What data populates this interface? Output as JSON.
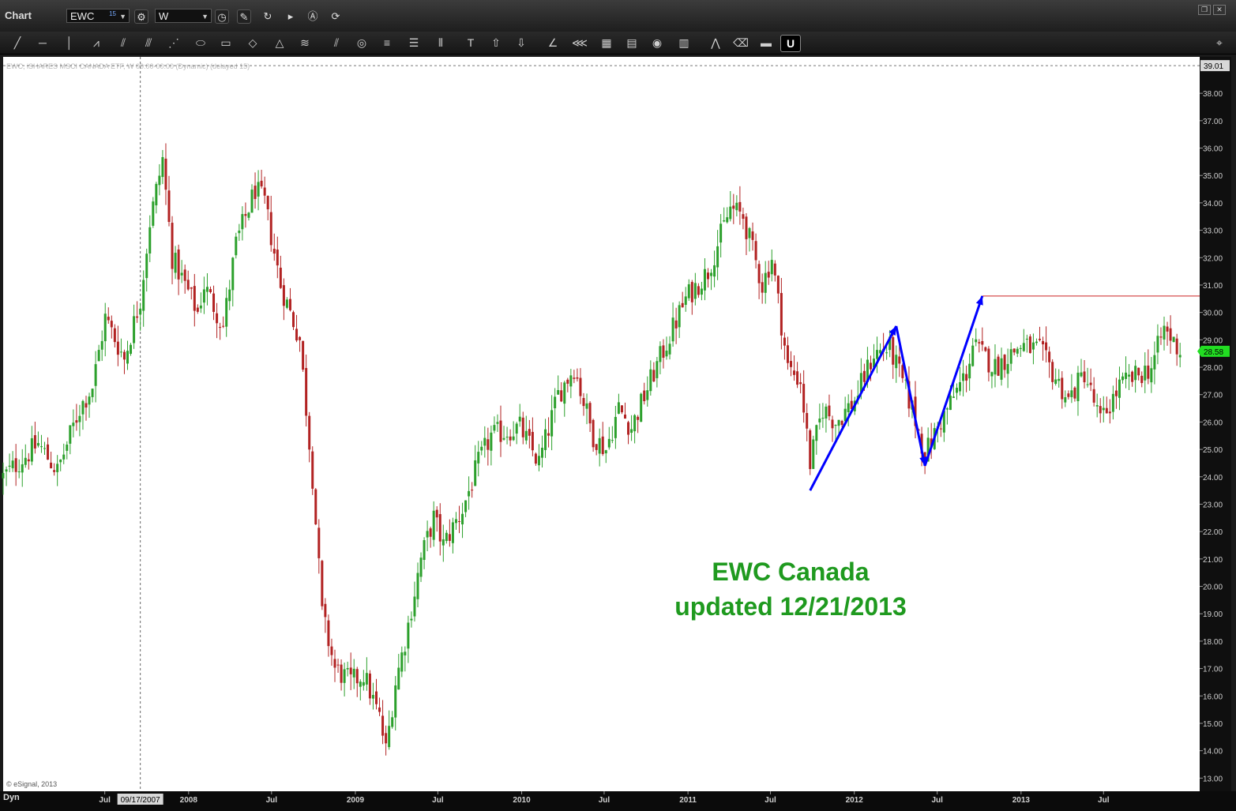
{
  "window": {
    "title": "Chart",
    "symbol": "EWC",
    "symbol_count": "15",
    "interval": "W"
  },
  "header_line": "EWC, iSHARES MSCI CANADA ETF, W 00:00-00:00 (Dynamic) (delayed 15)",
  "copyright": "© eSignal, 2013",
  "footer": {
    "mode": "Dyn"
  },
  "colors": {
    "up": "#2ca02c",
    "down": "#b22222",
    "annotation": "#1f9a1f",
    "arrow": "#0000ff",
    "resistance": "#cc2222",
    "last_price_bg": "#22dd22",
    "cursor_price_bg": "#d8d8d8"
  },
  "icons": [
    "settings-icon",
    "clock-icon",
    "pencil-icon",
    "refresh-icon",
    "play-icon",
    "alert-icon",
    "link-icon",
    "line-tool-icon",
    "horizontal-line-icon",
    "vertical-line-icon",
    "wave-icon",
    "fork-icon",
    "fan-icon",
    "gann-icon",
    "ellipse-icon",
    "rectangle-icon",
    "diamond-icon",
    "triangle-icon",
    "channel-icon",
    "parallel-icon",
    "circles-icon",
    "fib-icon",
    "fib-ext-icon",
    "cycle-icon",
    "text-icon",
    "up-arrow-icon",
    "down-arrow-icon",
    "angle-icon",
    "speed-icon",
    "grid-icon",
    "mob-icon",
    "t3-icon",
    "pti-icon",
    "pattern-icon",
    "eraser-icon",
    "comment-icon",
    "magnet-icon",
    "pin-icon"
  ],
  "chart_data": {
    "type": "candlestick",
    "title": "",
    "annotation": [
      "EWC Canada",
      "updated 12/21/2013"
    ],
    "interval": "weekly",
    "x_tick_labels": [
      "Jul",
      "09/17/2007",
      "2008",
      "Jul",
      "2009",
      "Jul",
      "2010",
      "Jul",
      "2011",
      "Jul",
      "2012",
      "Jul",
      "2013",
      "Jul"
    ],
    "x_tick_dates": [
      "2007-07-01",
      "2007-09-17",
      "2008-01-01",
      "2008-07-01",
      "2009-01-01",
      "2009-07-01",
      "2010-01-01",
      "2010-07-01",
      "2011-01-01",
      "2011-07-01",
      "2012-01-01",
      "2012-07-01",
      "2013-01-01",
      "2013-07-01"
    ],
    "x_range": [
      "2006-11-20",
      "2014-01-28"
    ],
    "y_range": [
      12.52,
      39.33
    ],
    "y_ticks": [
      13,
      14,
      15,
      16,
      17,
      18,
      19,
      20,
      21,
      22,
      23,
      24,
      25,
      26,
      27,
      28,
      29,
      30,
      31,
      32,
      33,
      34,
      35,
      36,
      37,
      38
    ],
    "y_tick_labels": [
      "13.00",
      "14.00",
      "15.00",
      "16.00",
      "17.00",
      "18.00",
      "19.00",
      "20.00",
      "21.00",
      "22.00",
      "23.00",
      "24.00",
      "25.00",
      "26.00",
      "27.00",
      "28.00",
      "29.00",
      "30.00",
      "31.00",
      "32.00",
      "33.00",
      "34.00",
      "35.00",
      "36.00",
      "37.00",
      "38.00"
    ],
    "last_price": 28.58,
    "last_price_label": "28.58",
    "cursor_price": 39.01,
    "cursor_price_label": "39.01",
    "cursor_date": "2007-09-17",
    "resistance_level": {
      "value": 30.6,
      "from": "2012-10-08"
    },
    "arrows": [
      {
        "from": [
          "2011-09-26",
          23.5
        ],
        "to": [
          "2012-04-02",
          29.5
        ]
      },
      {
        "from": [
          "2012-04-02",
          29.5
        ],
        "to": [
          "2012-06-04",
          24.4
        ]
      },
      {
        "from": [
          "2012-06-04",
          24.4
        ],
        "to": [
          "2012-10-08",
          30.6
        ]
      }
    ],
    "price_path": [
      [
        "2006-11-20",
        24.0
      ],
      [
        "2007-02-05",
        25.2
      ],
      [
        "2007-03-19",
        24.2
      ],
      [
        "2007-05-07",
        26.5
      ],
      [
        "2007-06-04",
        27.3
      ],
      [
        "2007-07-02",
        29.8
      ],
      [
        "2007-08-13",
        28.3
      ],
      [
        "2007-09-17",
        30.5
      ],
      [
        "2007-10-08",
        33.3
      ],
      [
        "2007-11-05",
        35.6
      ],
      [
        "2007-11-26",
        32.0
      ],
      [
        "2008-01-21",
        30.0
      ],
      [
        "2008-02-04",
        31.0
      ],
      [
        "2008-03-17",
        29.5
      ],
      [
        "2008-04-14",
        32.5
      ],
      [
        "2008-05-26",
        34.5
      ],
      [
        "2008-06-16",
        34.0
      ],
      [
        "2008-07-21",
        31.0
      ],
      [
        "2008-09-01",
        29.0
      ],
      [
        "2008-09-29",
        24.0
      ],
      [
        "2008-10-20",
        19.0
      ],
      [
        "2008-11-17",
        17.0
      ],
      [
        "2008-12-22",
        16.5
      ],
      [
        "2009-01-19",
        16.8
      ],
      [
        "2009-02-23",
        15.2
      ],
      [
        "2009-03-09",
        14.0
      ],
      [
        "2009-03-30",
        16.5
      ],
      [
        "2009-04-20",
        18.0
      ],
      [
        "2009-05-25",
        21.0
      ],
      [
        "2009-06-22",
        22.5
      ],
      [
        "2009-07-13",
        21.5
      ],
      [
        "2009-08-24",
        22.8
      ],
      [
        "2009-09-28",
        24.5
      ],
      [
        "2009-10-26",
        25.5
      ],
      [
        "2009-12-28",
        25.8
      ],
      [
        "2010-02-08",
        24.5
      ],
      [
        "2010-03-22",
        27.0
      ],
      [
        "2010-04-26",
        28.0
      ],
      [
        "2010-06-07",
        25.5
      ],
      [
        "2010-07-05",
        25.0
      ],
      [
        "2010-08-02",
        26.5
      ],
      [
        "2010-08-30",
        25.8
      ],
      [
        "2010-10-18",
        27.8
      ],
      [
        "2010-12-27",
        30.5
      ],
      [
        "2011-02-14",
        31.5
      ],
      [
        "2011-04-04",
        33.8
      ],
      [
        "2011-05-02",
        33.5
      ],
      [
        "2011-06-13",
        31.0
      ],
      [
        "2011-07-04",
        32.0
      ],
      [
        "2011-08-08",
        28.0
      ],
      [
        "2011-09-05",
        27.5
      ],
      [
        "2011-09-26",
        24.5
      ],
      [
        "2011-10-24",
        26.5
      ],
      [
        "2011-11-21",
        26.0
      ],
      [
        "2012-01-02",
        26.8
      ],
      [
        "2012-02-13",
        28.5
      ],
      [
        "2012-03-19",
        28.7
      ],
      [
        "2012-05-07",
        26.5
      ],
      [
        "2012-06-04",
        24.8
      ],
      [
        "2012-07-02",
        25.8
      ],
      [
        "2012-09-03",
        27.8
      ],
      [
        "2012-09-17",
        28.8
      ],
      [
        "2012-11-05",
        28.0
      ],
      [
        "2012-12-31",
        28.8
      ],
      [
        "2013-02-11",
        28.6
      ],
      [
        "2013-04-15",
        26.8
      ],
      [
        "2013-05-20",
        27.8
      ],
      [
        "2013-06-24",
        26.0
      ],
      [
        "2013-08-05",
        27.3
      ],
      [
        "2013-10-14",
        28.0
      ],
      [
        "2013-11-11",
        29.4
      ],
      [
        "2013-12-16",
        28.6
      ]
    ]
  }
}
